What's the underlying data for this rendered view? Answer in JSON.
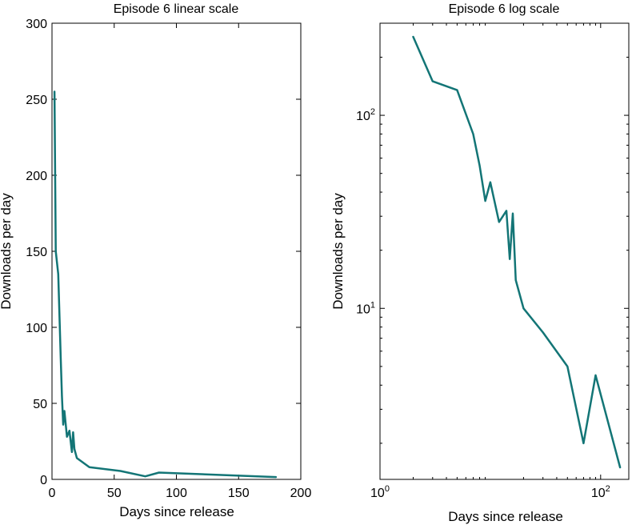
{
  "chart_data": [
    {
      "type": "line",
      "title": "Episode 6 linear scale",
      "xlabel": "Days since release",
      "ylabel": "Downloads per day",
      "xscale": "linear",
      "yscale": "linear",
      "xlim": [
        0,
        200
      ],
      "ylim": [
        0,
        300
      ],
      "xticks": [
        0,
        50,
        100,
        150,
        200
      ],
      "xtick_labels": [
        "0",
        "50",
        "100",
        "150",
        "200"
      ],
      "yticks": [
        0,
        50,
        100,
        150,
        200,
        250,
        300
      ],
      "ytick_labels": [
        "0",
        "50",
        "100",
        "150",
        "200",
        "250",
        "300"
      ],
      "grid": false,
      "series_color": "#137576",
      "x": [
        2,
        3,
        5,
        7,
        8,
        9,
        10,
        12,
        14,
        16,
        17,
        18,
        20,
        30,
        55,
        75,
        86,
        180
      ],
      "y": [
        255,
        150,
        135,
        80,
        55,
        36,
        45,
        28,
        32,
        18,
        31,
        20,
        14,
        8,
        5.5,
        2,
        4.5,
        1.5
      ]
    },
    {
      "type": "line",
      "title": "Episode 6 log scale",
      "xlabel": "Days since release",
      "ylabel": "Downloads per day",
      "xscale": "log",
      "yscale": "log",
      "xlim": [
        1,
        180
      ],
      "ylim": [
        1.3,
        300
      ],
      "xticks": [
        1,
        100
      ],
      "xtick_labels": [
        {
          "base": "10",
          "exp": "0"
        },
        {
          "base": "10",
          "exp": "2"
        }
      ],
      "yticks": [
        10,
        100
      ],
      "ytick_labels": [
        {
          "base": "10",
          "exp": "1"
        },
        {
          "base": "10",
          "exp": "2"
        }
      ],
      "grid": false,
      "series_color": "#137576",
      "x": [
        2,
        3,
        5,
        7,
        8,
        9,
        10,
        12,
        14,
        15,
        16,
        17,
        20,
        30,
        50,
        70,
        90,
        150
      ],
      "y": [
        255,
        150,
        135,
        80,
        55,
        36,
        45,
        28,
        32,
        18,
        31,
        14,
        10,
        7.5,
        5,
        2,
        4.5,
        1.5
      ]
    }
  ]
}
